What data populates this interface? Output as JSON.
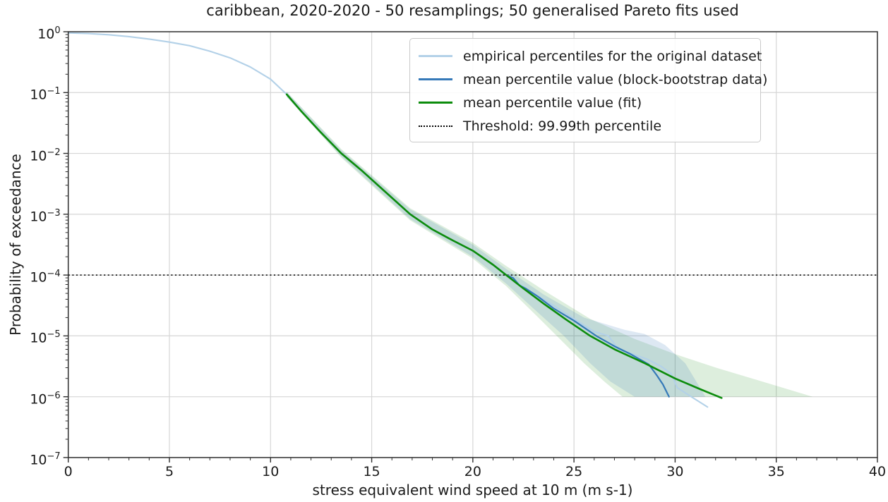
{
  "title": "caribbean, 2020-2020 - 50 resamplings; 50 generalised Pareto fits used",
  "axes": {
    "xlabel": "stress equivalent wind speed at 10 m (m s-1)",
    "ylabel": "Probability of exceedance",
    "xlim": [
      0,
      40
    ],
    "x_major_ticks": [
      0,
      5,
      10,
      15,
      20,
      25,
      30,
      35,
      40
    ],
    "x_minor_step": 1,
    "y_tick_base": "10",
    "y_tick_exponents": [
      0,
      -1,
      -2,
      -3,
      -4,
      -5,
      -6,
      -7
    ],
    "grid": true
  },
  "colors": {
    "empirical": "#b3d1e8",
    "bootstrap_mean": "#3579b8",
    "fit_mean": "#0c8c0c",
    "threshold": "#000000",
    "grid": "#d6d6d6",
    "spine": "#2e2e2e",
    "band_green": "rgba(44,150,44,0.16)",
    "band_blue": "rgba(66,130,190,0.18)"
  },
  "legend": {
    "entries": [
      {
        "label": "empirical percentiles for the original dataset",
        "color": "#b3d1e8",
        "style": "solid"
      },
      {
        "label": "mean percentile value (block-bootstrap data)",
        "color": "#3579b8",
        "style": "solid"
      },
      {
        "label": "mean percentile value (fit)",
        "color": "#0c8c0c",
        "style": "solid"
      },
      {
        "label": "Threshold: 99.99th percentile",
        "color": "#000000",
        "style": "dotted"
      }
    ]
  },
  "chart_data": {
    "type": "line",
    "title": "caribbean, 2020-2020 - 50 resamplings; 50 generalised Pareto fits used",
    "xlabel": "stress equivalent wind speed at 10 m (m s-1)",
    "ylabel": "Probability of exceedance",
    "xlim": [
      0,
      40
    ],
    "ylog_exponent_range": [
      0,
      -7
    ],
    "legend_position": "upper right",
    "threshold": {
      "label": "Threshold: 99.99th percentile",
      "log10_probability": -4
    },
    "series": [
      {
        "name": "empirical percentiles for the original dataset",
        "points_x_log10p": [
          [
            0,
            -0.02
          ],
          [
            1,
            -0.03
          ],
          [
            2,
            -0.05
          ],
          [
            3,
            -0.08
          ],
          [
            4,
            -0.12
          ],
          [
            5,
            -0.17
          ],
          [
            6,
            -0.23
          ],
          [
            7,
            -0.32
          ],
          [
            8,
            -0.43
          ],
          [
            9,
            -0.58
          ],
          [
            10,
            -0.78
          ],
          [
            10.8,
            -1.03
          ],
          [
            11.5,
            -1.3
          ],
          [
            12.5,
            -1.66
          ],
          [
            13.5,
            -2.0
          ],
          [
            14.5,
            -2.28
          ],
          [
            15.5,
            -2.58
          ],
          [
            16.9,
            -3.0
          ],
          [
            18,
            -3.25
          ],
          [
            19,
            -3.43
          ],
          [
            20,
            -3.6
          ],
          [
            21,
            -3.83
          ],
          [
            21.65,
            -4.0
          ],
          [
            22,
            -4.08
          ],
          [
            23,
            -4.3
          ],
          [
            24,
            -4.5
          ],
          [
            25,
            -4.72
          ],
          [
            26,
            -4.93
          ],
          [
            26.7,
            -5.0
          ],
          [
            27.2,
            -5.22
          ],
          [
            27.9,
            -5.3
          ],
          [
            28.6,
            -5.38
          ],
          [
            29.3,
            -5.5
          ],
          [
            29.8,
            -5.62
          ],
          [
            30.1,
            -5.85
          ],
          [
            30.8,
            -6.0
          ],
          [
            31.6,
            -6.17
          ]
        ]
      },
      {
        "name": "mean percentile value (block-bootstrap data)",
        "points_x_log10p": [
          [
            10.8,
            -1.03
          ],
          [
            11.5,
            -1.3
          ],
          [
            12.5,
            -1.66
          ],
          [
            13.5,
            -2.0
          ],
          [
            14.5,
            -2.28
          ],
          [
            15.5,
            -2.58
          ],
          [
            16.9,
            -3.0
          ],
          [
            18,
            -3.25
          ],
          [
            19,
            -3.43
          ],
          [
            20,
            -3.6
          ],
          [
            21,
            -3.83
          ],
          [
            21.65,
            -4.0
          ],
          [
            22.0,
            -4.05
          ],
          [
            22.3,
            -4.17
          ],
          [
            22.6,
            -4.22
          ],
          [
            23.2,
            -4.35
          ],
          [
            24,
            -4.55
          ],
          [
            25,
            -4.75
          ],
          [
            26.1,
            -5.0
          ],
          [
            27,
            -5.17
          ],
          [
            27.8,
            -5.3
          ],
          [
            28.7,
            -5.47
          ],
          [
            29.1,
            -5.65
          ],
          [
            29.4,
            -5.8
          ],
          [
            29.7,
            -6.0
          ]
        ]
      },
      {
        "name": "mean percentile value (fit)",
        "points_x_log10p": [
          [
            10.8,
            -1.03
          ],
          [
            11.5,
            -1.3
          ],
          [
            12.5,
            -1.66
          ],
          [
            13.5,
            -2.0
          ],
          [
            14.5,
            -2.28
          ],
          [
            15.5,
            -2.58
          ],
          [
            16.9,
            -3.0
          ],
          [
            18,
            -3.25
          ],
          [
            19,
            -3.43
          ],
          [
            20,
            -3.6
          ],
          [
            21,
            -3.83
          ],
          [
            21.65,
            -4.0
          ],
          [
            22.5,
            -4.22
          ],
          [
            23.5,
            -4.47
          ],
          [
            24.6,
            -4.73
          ],
          [
            25.8,
            -5.0
          ],
          [
            27,
            -5.22
          ],
          [
            28.5,
            -5.45
          ],
          [
            30,
            -5.7
          ],
          [
            31.2,
            -5.87
          ],
          [
            32.3,
            -6.02
          ]
        ]
      }
    ],
    "bands": [
      {
        "name": "fit confidence band",
        "upper": [
          [
            10.8,
            -0.99
          ],
          [
            13.5,
            -1.93
          ],
          [
            16.9,
            -2.9
          ],
          [
            20,
            -3.47
          ],
          [
            21.65,
            -3.85
          ],
          [
            23.5,
            -4.25
          ],
          [
            25.8,
            -4.72
          ],
          [
            28,
            -5.05
          ],
          [
            30,
            -5.3
          ],
          [
            32,
            -5.52
          ],
          [
            34,
            -5.72
          ],
          [
            36.8,
            -6.0
          ]
        ],
        "lower": [
          [
            10.8,
            -1.07
          ],
          [
            13.5,
            -2.07
          ],
          [
            16.9,
            -3.1
          ],
          [
            20,
            -3.73
          ],
          [
            21.65,
            -4.18
          ],
          [
            23,
            -4.62
          ],
          [
            24.3,
            -5.05
          ],
          [
            25.5,
            -5.45
          ],
          [
            26.5,
            -5.75
          ],
          [
            27.4,
            -6.0
          ],
          [
            36.8,
            -6.0
          ]
        ]
      },
      {
        "name": "bootstrap confidence band",
        "upper": [
          [
            10.8,
            -0.99
          ],
          [
            13.5,
            -1.95
          ],
          [
            16.9,
            -2.92
          ],
          [
            20,
            -3.5
          ],
          [
            21.65,
            -3.9
          ],
          [
            23.5,
            -4.32
          ],
          [
            25.5,
            -4.7
          ],
          [
            27.5,
            -4.9
          ],
          [
            28.5,
            -4.97
          ],
          [
            29.5,
            -5.15
          ],
          [
            30.5,
            -5.45
          ],
          [
            31.5,
            -6.0
          ]
        ],
        "lower": [
          [
            10.8,
            -1.07
          ],
          [
            13.5,
            -2.05
          ],
          [
            16.9,
            -3.08
          ],
          [
            20,
            -3.7
          ],
          [
            21.65,
            -4.14
          ],
          [
            23,
            -4.55
          ],
          [
            24.5,
            -5.0
          ],
          [
            25.8,
            -5.45
          ],
          [
            26.8,
            -5.75
          ],
          [
            28,
            -6.0
          ],
          [
            31.5,
            -6.0
          ]
        ]
      }
    ]
  }
}
